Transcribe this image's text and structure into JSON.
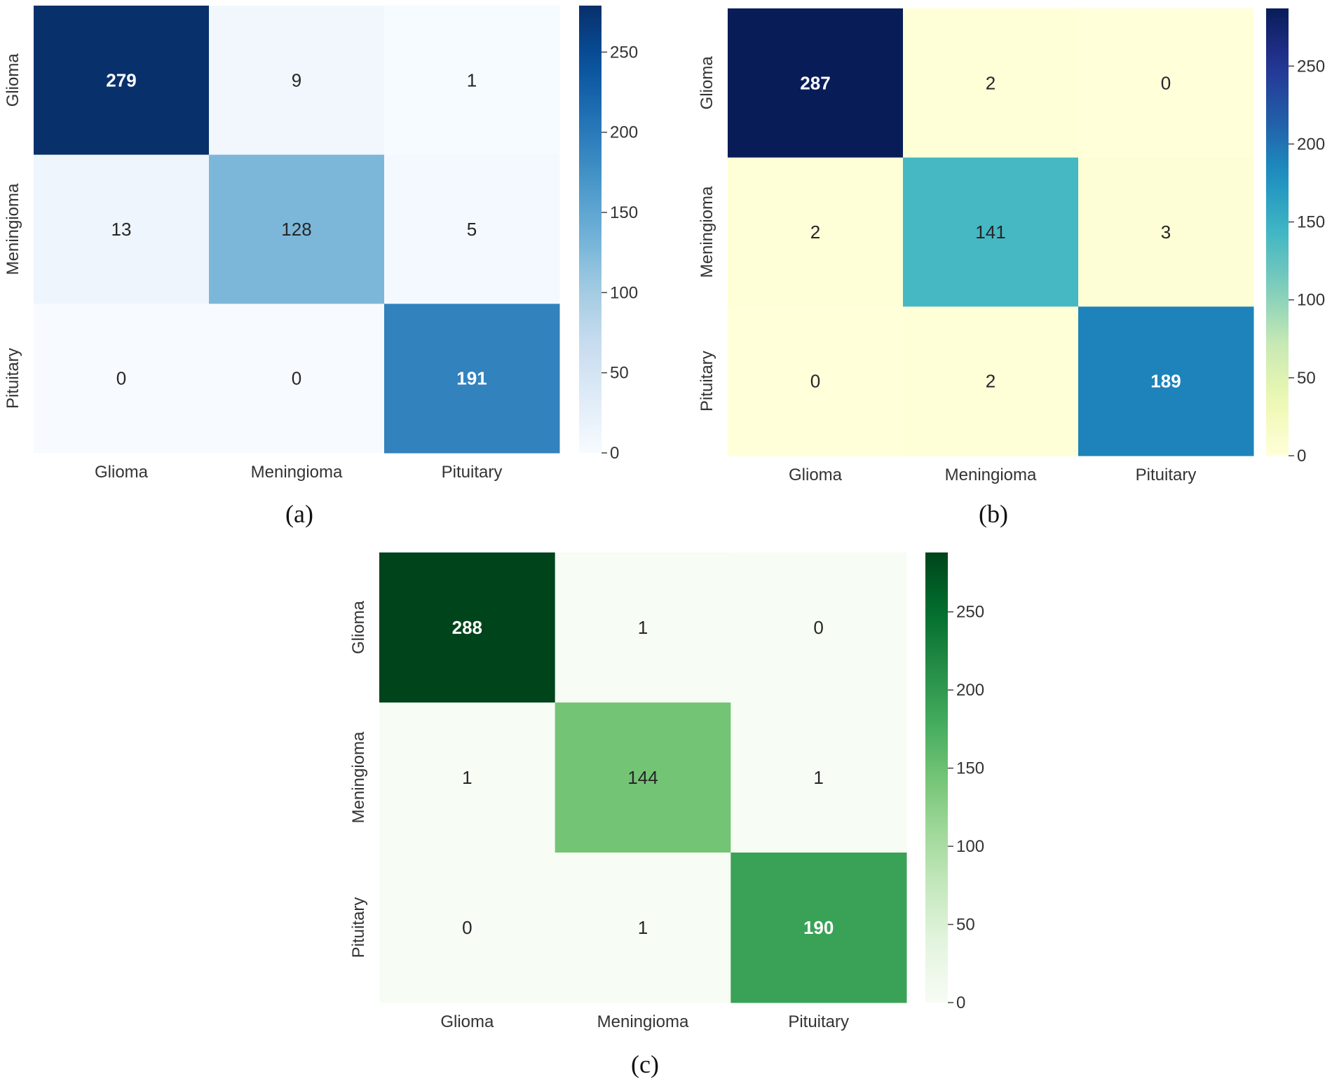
{
  "chart_data": [
    {
      "type": "heatmap",
      "caption": "(a)",
      "colormap": "Blues",
      "x_categories": [
        "Glioma",
        "Meningioma",
        "Pituitary"
      ],
      "y_categories": [
        "Glioma",
        "Meningioma",
        "Pituitary"
      ],
      "values": [
        [
          279,
          9,
          1
        ],
        [
          13,
          128,
          5
        ],
        [
          0,
          0,
          191
        ]
      ],
      "colorbar": {
        "min": 0,
        "max": 279,
        "ticks": [
          0,
          50,
          100,
          150,
          200,
          250
        ]
      }
    },
    {
      "type": "heatmap",
      "caption": "(b)",
      "colormap": "YlGnBu",
      "x_categories": [
        "Glioma",
        "Meningioma",
        "Pituitary"
      ],
      "y_categories": [
        "Glioma",
        "Meningioma",
        "Pituitary"
      ],
      "values": [
        [
          287,
          2,
          0
        ],
        [
          2,
          141,
          3
        ],
        [
          0,
          2,
          189
        ]
      ],
      "colorbar": {
        "min": 0,
        "max": 287,
        "ticks": [
          0,
          50,
          100,
          150,
          200,
          250
        ]
      }
    },
    {
      "type": "heatmap",
      "caption": "(c)",
      "colormap": "Greens",
      "x_categories": [
        "Glioma",
        "Meningioma",
        "Pituitary"
      ],
      "y_categories": [
        "Glioma",
        "Meningioma",
        "Pituitary"
      ],
      "values": [
        [
          288,
          1,
          0
        ],
        [
          1,
          144,
          1
        ],
        [
          0,
          1,
          190
        ]
      ],
      "colorbar": {
        "min": 0,
        "max": 288,
        "ticks": [
          0,
          50,
          100,
          150,
          200,
          250
        ]
      }
    }
  ]
}
